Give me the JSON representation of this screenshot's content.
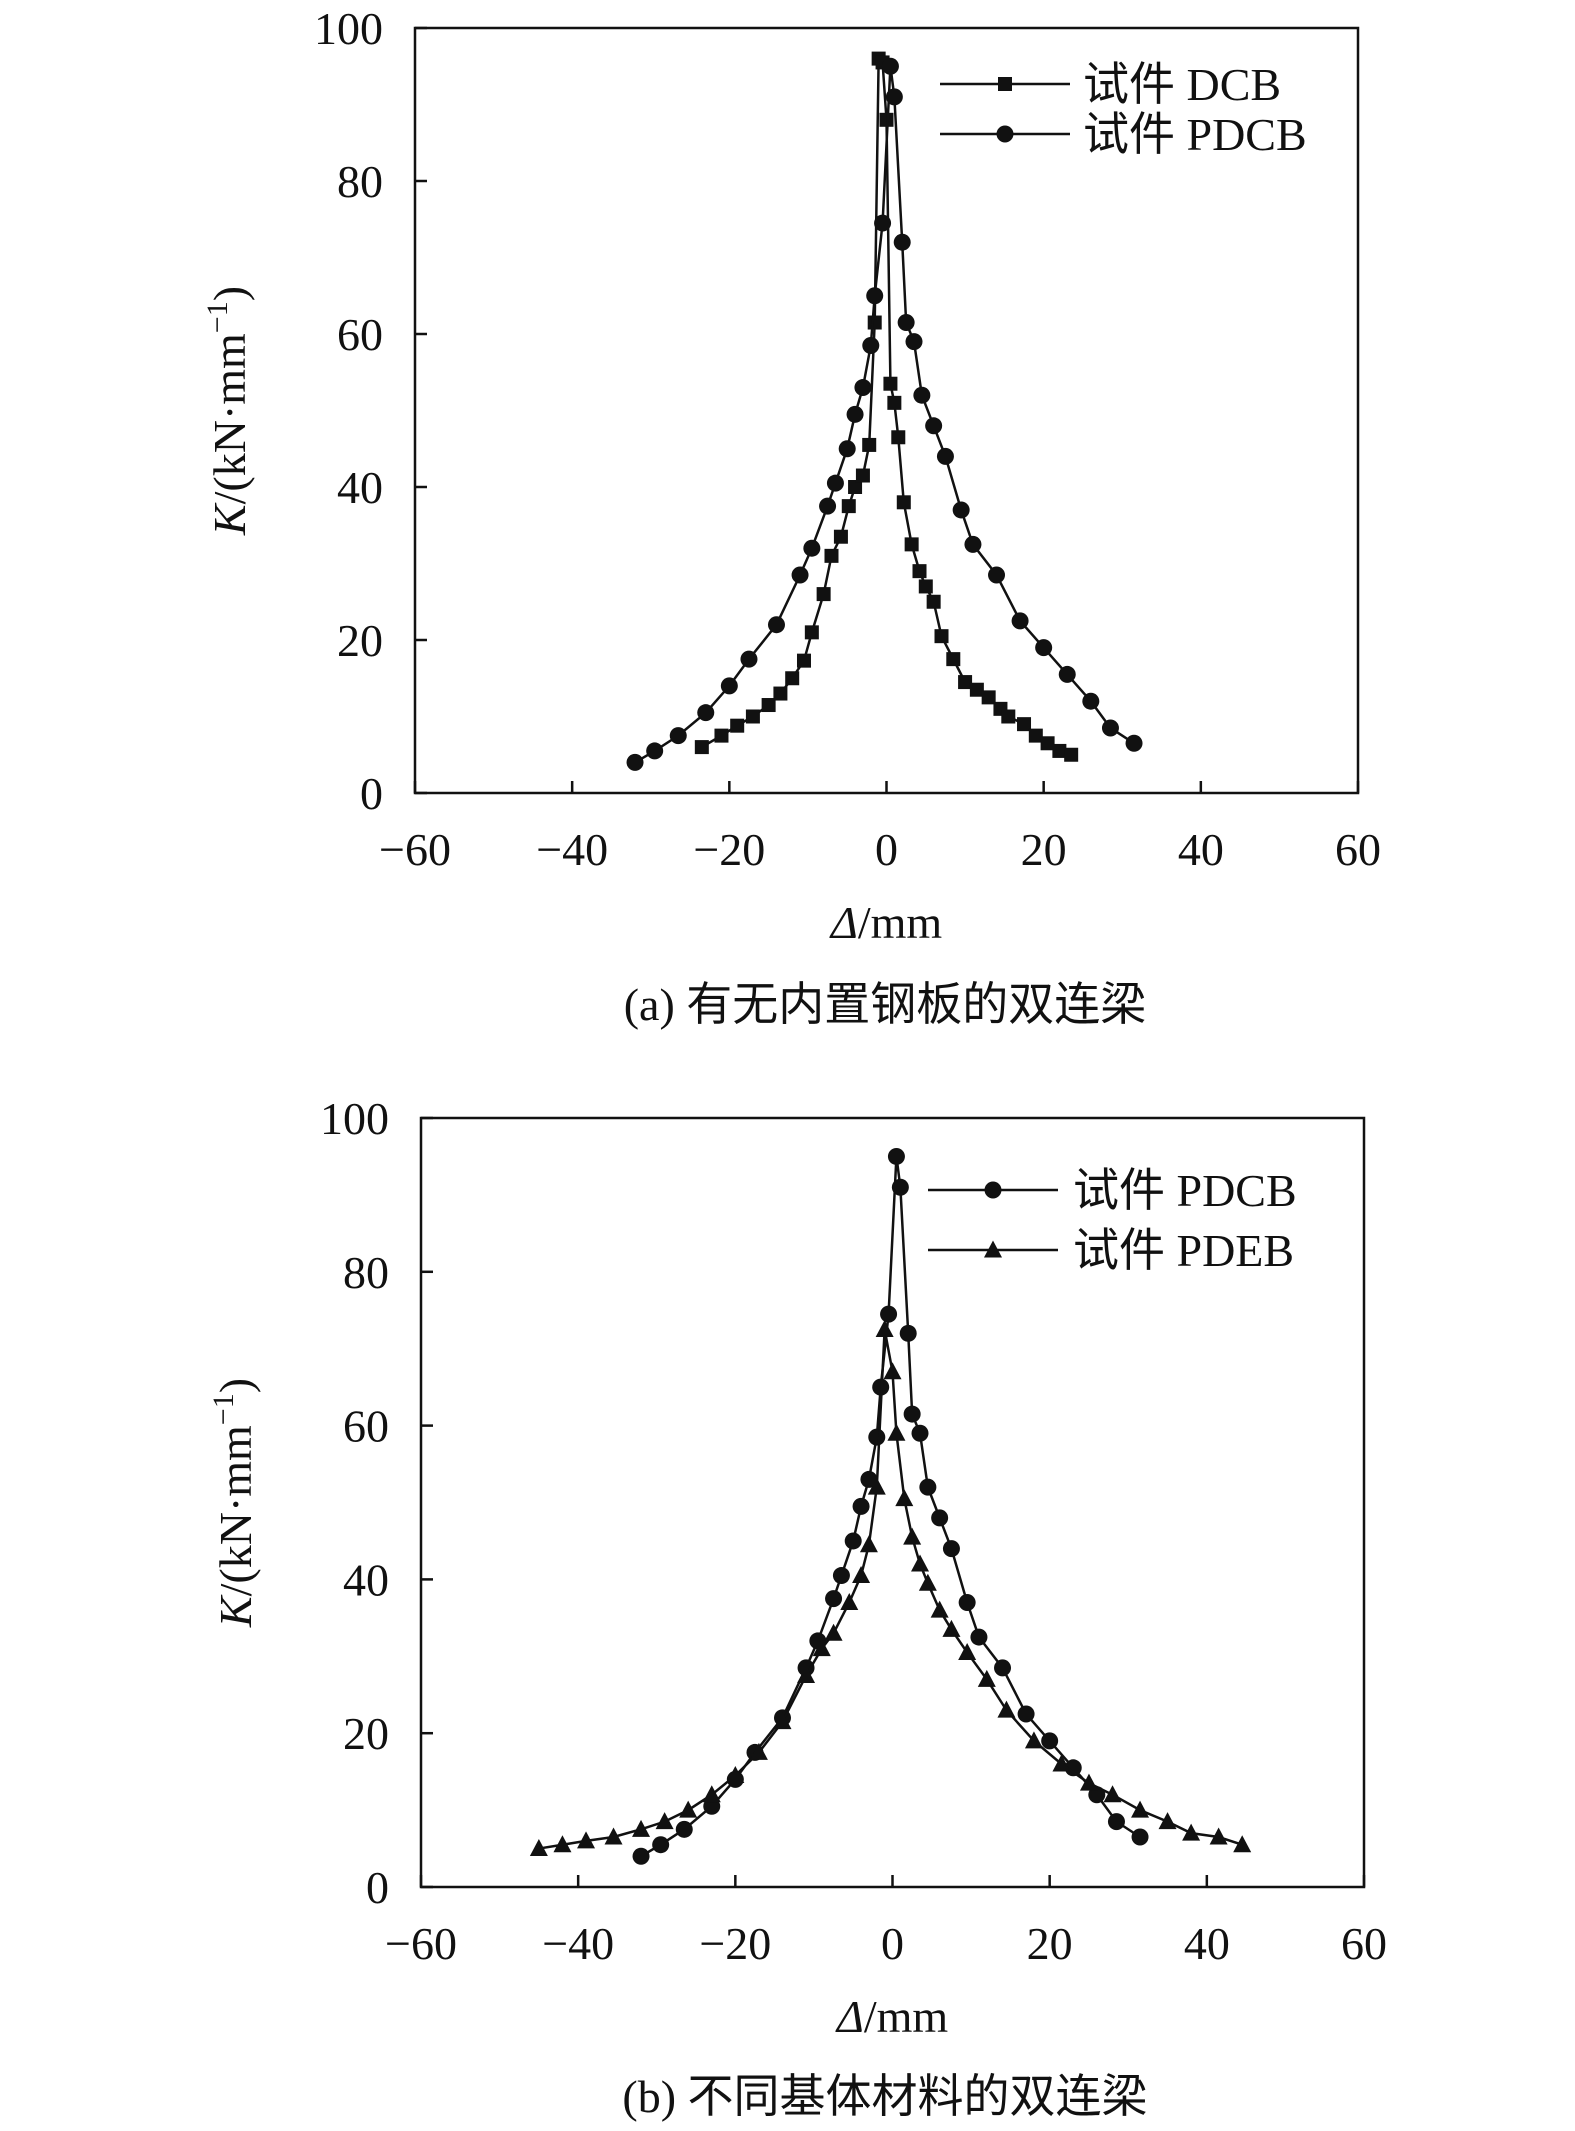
{
  "chart_data": [
    {
      "type": "line",
      "caption": "(a) 有无内置钢板的双连梁",
      "xlabel_italic": "Δ",
      "xlabel_unit": "/mm",
      "ylabel_italic": "K",
      "ylabel_unit": "/(kN·mm",
      "ylabel_sup": "−1",
      "ylabel_close": ")",
      "xlim": [
        -60,
        60
      ],
      "ylim": [
        0,
        100
      ],
      "xticks": [
        -60,
        -40,
        -20,
        0,
        20,
        40,
        60
      ],
      "yticks": [
        0,
        20,
        40,
        60,
        80,
        100
      ],
      "xtick_labels": [
        "−60",
        "−40",
        "−20",
        "0",
        "20",
        "40",
        "60"
      ],
      "ytick_labels": [
        "0",
        "20",
        "40",
        "60",
        "80",
        "100"
      ],
      "grid": false,
      "legend_position": "top-right",
      "series": [
        {
          "name": "试件 DCB",
          "marker": "square",
          "x": [
            -23.5,
            -21,
            -19,
            -17,
            -15,
            -13.5,
            -12,
            -10.5,
            -9.5,
            -8,
            -7,
            -5.8,
            -4.8,
            -4,
            -3,
            -2.2,
            -1.5,
            -1,
            -0.5,
            0,
            0.5,
            1,
            1.5,
            2.2,
            3.2,
            4.2,
            5,
            6,
            7,
            8.5,
            10,
            11.5,
            13,
            14.5,
            15.5,
            17.5,
            19,
            20.5,
            22,
            23.5
          ],
          "y": [
            6,
            7.5,
            8.8,
            10,
            11.5,
            13,
            15,
            17.3,
            21,
            26,
            31,
            33.5,
            37.5,
            40,
            41.5,
            45.5,
            61.5,
            96,
            95.5,
            88,
            53.5,
            51,
            46.5,
            38,
            32.5,
            29,
            27,
            25,
            20.5,
            17.5,
            14.5,
            13.5,
            12.5,
            11,
            10,
            9,
            7.5,
            6.5,
            5.5,
            5
          ]
        },
        {
          "name": "试件 PDCB",
          "marker": "circle",
          "x": [
            -32,
            -29.5,
            -26.5,
            -23,
            -20,
            -17.5,
            -14,
            -11,
            -9.5,
            -7.5,
            -6.5,
            -5,
            -4,
            -3,
            -2,
            -1.5,
            -0.5,
            0.5,
            1,
            2,
            2.5,
            3.5,
            4.5,
            6,
            7.5,
            9.5,
            11,
            14,
            17,
            20,
            23,
            26,
            28.5,
            31.5
          ],
          "y": [
            4,
            5.5,
            7.5,
            10.5,
            14,
            17.5,
            22,
            28.5,
            32,
            37.5,
            40.5,
            45,
            49.5,
            53,
            58.5,
            65,
            74.5,
            95,
            91,
            72,
            61.5,
            59,
            52,
            48,
            44,
            37,
            32.5,
            28.5,
            22.5,
            19,
            15.5,
            12,
            8.5,
            6.5
          ]
        }
      ]
    },
    {
      "type": "line",
      "caption": "(b) 不同基体材料的双连梁",
      "xlabel_italic": "Δ",
      "xlabel_unit": "/mm",
      "ylabel_italic": "K",
      "ylabel_unit": "/(kN·mm",
      "ylabel_sup": "−1",
      "ylabel_close": ")",
      "xlim": [
        -60,
        60
      ],
      "ylim": [
        0,
        100
      ],
      "xticks": [
        -60,
        -40,
        -20,
        0,
        20,
        40,
        60
      ],
      "yticks": [
        0,
        20,
        40,
        60,
        80,
        100
      ],
      "xtick_labels": [
        "−60",
        "−40",
        "−20",
        "0",
        "20",
        "40",
        "60"
      ],
      "ytick_labels": [
        "0",
        "20",
        "40",
        "60",
        "80",
        "100"
      ],
      "grid": false,
      "legend_position": "top-right",
      "series": [
        {
          "name": "试件 PDCB",
          "marker": "circle",
          "x": [
            -32,
            -29.5,
            -26.5,
            -23,
            -20,
            -17.5,
            -14,
            -11,
            -9.5,
            -7.5,
            -6.5,
            -5,
            -4,
            -3,
            -2,
            -1.5,
            -0.5,
            0.5,
            1,
            2,
            2.5,
            3.5,
            4.5,
            6,
            7.5,
            9.5,
            11,
            14,
            17,
            20,
            23,
            26,
            28.5,
            31.5
          ],
          "y": [
            4,
            5.5,
            7.5,
            10.5,
            14,
            17.5,
            22,
            28.5,
            32,
            37.5,
            40.5,
            45,
            49.5,
            53,
            58.5,
            65,
            74.5,
            95,
            91,
            72,
            61.5,
            59,
            52,
            48,
            44,
            37,
            32.5,
            28.5,
            22.5,
            19,
            15.5,
            12,
            8.5,
            6.5
          ]
        },
        {
          "name": "试件 PDEB",
          "marker": "triangle",
          "x": [
            -45,
            -42,
            -39,
            -35.5,
            -32,
            -29,
            -26,
            -23,
            -20,
            -17,
            -14,
            -11,
            -9,
            -7.5,
            -5.5,
            -4,
            -3,
            -2,
            -1,
            0,
            0.5,
            1.5,
            2.5,
            3.5,
            4.5,
            6,
            7.5,
            9.5,
            12,
            14.5,
            18,
            21.5,
            25,
            28,
            31.5,
            35,
            38,
            41.5,
            44.5
          ],
          "y": [
            5,
            5.5,
            6,
            6.5,
            7.5,
            8.5,
            10,
            12,
            14.5,
            17.5,
            21.5,
            27.5,
            31,
            33,
            37,
            40.5,
            44.5,
            52,
            72.5,
            67,
            59,
            50.5,
            45.5,
            42,
            39.5,
            36,
            33.5,
            30.5,
            27,
            23,
            19,
            16,
            13.5,
            12,
            10,
            8.5,
            7,
            6.5,
            5.5
          ]
        }
      ]
    }
  ]
}
